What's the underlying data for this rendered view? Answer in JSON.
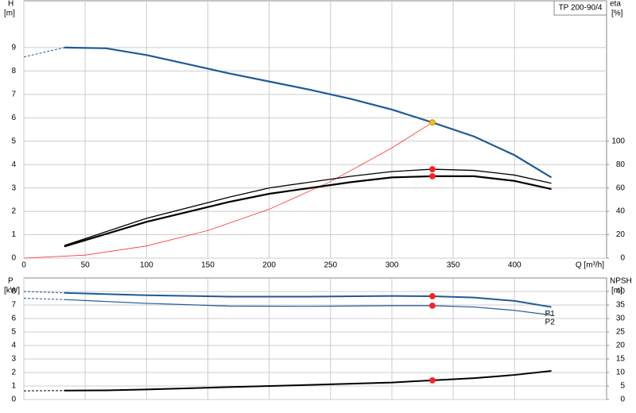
{
  "chart_data": [
    {
      "type": "line",
      "title": "TP 200-90/4",
      "ylabel": "H",
      "yunit": "[m]",
      "y2label": "eta",
      "y2unit": "[%]",
      "xlabel": "Q [m³/h]",
      "xlim": [
        0,
        475
      ],
      "xticks": [
        0,
        50,
        100,
        150,
        200,
        250,
        300,
        350,
        400
      ],
      "show_xtick_labels": true,
      "ylim": [
        0,
        11
      ],
      "yticks": [
        0,
        1,
        2,
        3,
        4,
        5,
        6,
        7,
        8,
        9
      ],
      "y2lim": [
        0,
        220
      ],
      "y2ticks": [
        0,
        20,
        40,
        60,
        80,
        100
      ],
      "grid": true,
      "series": [
        {
          "color": "#1f5a96",
          "width": 1,
          "dashed": true,
          "x": [
            0,
            33
          ],
          "values": [
            8.6,
            9.0
          ]
        },
        {
          "color": "#1f5a96",
          "width": 2.2,
          "dashed": false,
          "x": [
            33,
            67,
            100,
            133,
            167,
            200,
            233,
            267,
            300,
            333,
            367,
            400,
            430
          ],
          "values": [
            9.0,
            8.97,
            8.68,
            8.3,
            7.9,
            7.55,
            7.2,
            6.8,
            6.35,
            5.8,
            5.2,
            4.4,
            3.45
          ]
        },
        {
          "color": "#ff3030",
          "width": 0.8,
          "dashed": false,
          "x": [
            0,
            50,
            100,
            150,
            200,
            250,
            300,
            333
          ],
          "values": [
            0,
            0.13,
            0.52,
            1.18,
            2.09,
            3.27,
            4.71,
            5.8
          ]
        },
        {
          "color": "#000000",
          "width": 1.3,
          "dashed": false,
          "axis": "y2",
          "x": [
            33,
            100,
            167,
            200,
            267,
            300,
            333,
            367,
            400,
            430
          ],
          "values": [
            10.8,
            34,
            52,
            60,
            70,
            74,
            76,
            75,
            71,
            64
          ]
        },
        {
          "color": "#000000",
          "width": 2.2,
          "dashed": false,
          "axis": "y2",
          "x": [
            33,
            100,
            167,
            200,
            267,
            300,
            333,
            367,
            400,
            430
          ],
          "values": [
            10,
            31,
            48,
            55,
            65,
            69,
            70,
            70,
            66,
            59
          ]
        }
      ],
      "markers": [
        {
          "x": 333,
          "y": 5.8,
          "color": "#ffc000"
        },
        {
          "x": 333,
          "y": 76,
          "color": "#ff2020",
          "axis": "y2"
        },
        {
          "x": 333,
          "y": 70,
          "color": "#ff2020",
          "axis": "y2"
        }
      ]
    },
    {
      "type": "line",
      "ylabel": "P",
      "yunit": "[kW]",
      "y2label": "NPSH",
      "y2unit": "[m]",
      "xlim": [
        0,
        475
      ],
      "xticks": [
        0,
        50,
        100,
        150,
        200,
        250,
        300,
        350,
        400
      ],
      "show_xtick_labels": false,
      "ylim": [
        0,
        9
      ],
      "yticks": [
        0,
        1,
        2,
        3,
        4,
        5,
        6,
        7,
        8
      ],
      "y2lim": [
        0,
        45
      ],
      "y2ticks": [
        0,
        5,
        10,
        15,
        20,
        25,
        30,
        35,
        40
      ],
      "grid": true,
      "series": [
        {
          "color": "#1f5a96",
          "width": 1,
          "dashed": true,
          "x": [
            0,
            33
          ],
          "values": [
            8.0,
            7.9
          ]
        },
        {
          "name": "P1",
          "color": "#1f5a96",
          "width": 2,
          "dashed": false,
          "x": [
            33,
            100,
            167,
            233,
            300,
            333,
            367,
            400,
            430
          ],
          "values": [
            7.9,
            7.72,
            7.62,
            7.62,
            7.67,
            7.65,
            7.55,
            7.3,
            6.85
          ]
        },
        {
          "color": "#1f5a96",
          "width": 1,
          "dashed": true,
          "x": [
            0,
            33
          ],
          "values": [
            7.5,
            7.4
          ]
        },
        {
          "name": "P2",
          "color": "#1f5a96",
          "width": 1.2,
          "dashed": false,
          "x": [
            33,
            100,
            167,
            233,
            300,
            333,
            367,
            400,
            430
          ],
          "values": [
            7.4,
            7.12,
            6.92,
            6.9,
            6.95,
            6.95,
            6.85,
            6.6,
            6.25
          ]
        },
        {
          "color": "#000000",
          "width": 1,
          "dashed": true,
          "axis": "y2",
          "x": [
            0,
            33
          ],
          "values": [
            3.2,
            3.3
          ]
        },
        {
          "color": "#000000",
          "width": 2,
          "dashed": false,
          "axis": "y2",
          "x": [
            33,
            67,
            100,
            167,
            233,
            300,
            333,
            367,
            400,
            430
          ],
          "values": [
            3.3,
            3.4,
            3.7,
            4.6,
            5.4,
            6.3,
            7.1,
            7.9,
            9.1,
            10.6
          ]
        }
      ],
      "markers": [
        {
          "x": 333,
          "y": 7.65,
          "color": "#ff2020"
        },
        {
          "x": 333,
          "y": 6.95,
          "color": "#ff2020"
        },
        {
          "x": 333,
          "y": 7.1,
          "color": "#ff2020",
          "axis": "y2"
        }
      ]
    }
  ]
}
